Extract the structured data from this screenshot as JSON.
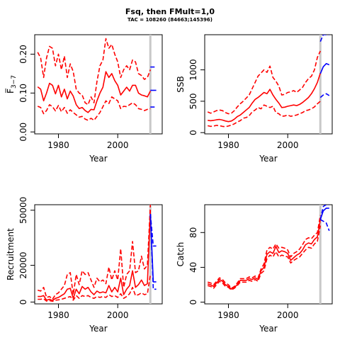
{
  "figure": {
    "title": "Fsq, then FMult=1,0",
    "subtitle": "TAC = 108260 (84663;145396)"
  },
  "colors": {
    "history": "#ff0000",
    "projection": "#0000ff",
    "divider": "#c8c8c8",
    "axis": "#000000"
  },
  "chart_data": [
    {
      "type": "line",
      "id": "fbar",
      "xlabel": "Year",
      "ylabel": "F̅",
      "ylabel_sub": "3−7",
      "xlim": [
        1972,
        2015
      ],
      "ylim": [
        -0.005,
        0.25
      ],
      "xticks": [
        1980,
        2000
      ],
      "yticks": [
        0.0,
        0.1,
        0.2
      ],
      "ytick_labels": [
        "0.00",
        "0.10",
        "0.20"
      ],
      "divider_x": 2011,
      "history": {
        "x": [
          1973,
          1974,
          1975,
          1976,
          1977,
          1978,
          1979,
          1980,
          1981,
          1982,
          1983,
          1984,
          1985,
          1986,
          1987,
          1988,
          1989,
          1990,
          1991,
          1992,
          1993,
          1994,
          1995,
          1996,
          1997,
          1998,
          1999,
          2000,
          2001,
          2002,
          2003,
          2004,
          2005,
          2006,
          2007,
          2008,
          2009,
          2010,
          2011
        ],
        "lower": [
          0.066,
          0.063,
          0.047,
          0.055,
          0.07,
          0.065,
          0.054,
          0.068,
          0.052,
          0.063,
          0.048,
          0.057,
          0.05,
          0.044,
          0.038,
          0.04,
          0.033,
          0.03,
          0.035,
          0.03,
          0.04,
          0.05,
          0.065,
          0.08,
          0.073,
          0.09,
          0.085,
          0.08,
          0.06,
          0.066,
          0.065,
          0.07,
          0.075,
          0.07,
          0.06,
          0.058,
          0.055,
          0.058,
          0.06
        ],
        "mid": [
          0.116,
          0.11,
          0.08,
          0.1,
          0.125,
          0.12,
          0.098,
          0.12,
          0.09,
          0.11,
          0.085,
          0.105,
          0.092,
          0.07,
          0.06,
          0.063,
          0.055,
          0.05,
          0.058,
          0.057,
          0.08,
          0.1,
          0.115,
          0.155,
          0.14,
          0.15,
          0.132,
          0.12,
          0.095,
          0.105,
          0.115,
          0.105,
          0.12,
          0.12,
          0.1,
          0.095,
          0.093,
          0.09,
          0.105
        ],
        "upper": [
          0.205,
          0.19,
          0.14,
          0.19,
          0.22,
          0.215,
          0.17,
          0.2,
          0.16,
          0.195,
          0.14,
          0.175,
          0.155,
          0.11,
          0.1,
          0.095,
          0.075,
          0.07,
          0.09,
          0.075,
          0.13,
          0.17,
          0.185,
          0.24,
          0.215,
          0.225,
          0.2,
          0.18,
          0.14,
          0.16,
          0.17,
          0.16,
          0.185,
          0.18,
          0.15,
          0.145,
          0.135,
          0.14,
          0.16
        ]
      },
      "projection": {
        "x": [
          2011,
          2012,
          2013
        ],
        "lower": [
          0.064,
          0.064,
          0.064
        ],
        "mid": [
          0.107,
          0.107,
          0.107
        ],
        "upper": [
          0.167,
          0.167,
          0.167
        ]
      }
    },
    {
      "type": "line",
      "id": "ssb",
      "xlabel": "Year",
      "ylabel": "SSB",
      "xlim": [
        1972,
        2015
      ],
      "ylim": [
        -20,
        1560
      ],
      "xticks": [
        1980,
        2000
      ],
      "yticks": [
        0,
        500,
        1000
      ],
      "ytick_labels": [
        "0",
        "500",
        "1000"
      ],
      "divider_x": 2011,
      "history": {
        "x": [
          1973,
          1974,
          1975,
          1976,
          1977,
          1978,
          1979,
          1980,
          1981,
          1982,
          1983,
          1984,
          1985,
          1986,
          1987,
          1988,
          1989,
          1990,
          1991,
          1992,
          1993,
          1994,
          1995,
          1996,
          1997,
          1998,
          1999,
          2000,
          2001,
          2002,
          2003,
          2004,
          2005,
          2006,
          2007,
          2008,
          2009,
          2010,
          2011
        ],
        "lower": [
          110,
          100,
          105,
          115,
          110,
          100,
          95,
          105,
          120,
          140,
          170,
          190,
          230,
          240,
          270,
          330,
          360,
          400,
          380,
          440,
          420,
          400,
          420,
          320,
          300,
          260,
          265,
          280,
          260,
          270,
          280,
          300,
          320,
          350,
          360,
          380,
          410,
          460,
          500
        ],
        "mid": [
          195,
          190,
          195,
          205,
          210,
          200,
          185,
          175,
          185,
          215,
          255,
          280,
          320,
          360,
          400,
          470,
          530,
          560,
          600,
          640,
          620,
          690,
          600,
          530,
          470,
          400,
          405,
          420,
          430,
          440,
          430,
          450,
          480,
          520,
          560,
          620,
          700,
          800,
          950
        ],
        "upper": [
          330,
          310,
          330,
          350,
          360,
          350,
          320,
          300,
          310,
          350,
          410,
          460,
          500,
          550,
          600,
          700,
          800,
          900,
          950,
          1000,
          960,
          1060,
          880,
          820,
          740,
          600,
          610,
          640,
          650,
          670,
          640,
          680,
          720,
          800,
          860,
          900,
          1000,
          1200,
          1300
        ]
      },
      "projection": {
        "x": [
          2011,
          2012,
          2013,
          2014
        ],
        "lower": [
          560,
          600,
          620,
          590
        ],
        "mid": [
          940,
          1050,
          1100,
          1080
        ],
        "upper": [
          1450,
          1560,
          1560,
          1560
        ]
      }
    },
    {
      "type": "line",
      "id": "recruitment",
      "xlabel": "Year",
      "ylabel": "Recruitment",
      "xlim": [
        1972,
        2015
      ],
      "ylim": [
        -1000,
        53000
      ],
      "xticks": [
        1980,
        2000
      ],
      "yticks": [
        0,
        20000,
        50000
      ],
      "ytick_labels": [
        "0",
        "20000",
        "50000"
      ],
      "divider_x": 2011,
      "history": {
        "x": [
          1973,
          1974,
          1975,
          1976,
          1977,
          1978,
          1979,
          1980,
          1981,
          1982,
          1983,
          1984,
          1985,
          1986,
          1987,
          1988,
          1989,
          1990,
          1991,
          1992,
          1993,
          1994,
          1995,
          1996,
          1997,
          1998,
          1999,
          2000,
          2001,
          2002,
          2003,
          2004,
          2005,
          2006,
          2007,
          2008,
          2009,
          2010,
          2011
        ],
        "lower": [
          1500,
          1500,
          1800,
          500,
          800,
          400,
          1000,
          1200,
          1500,
          2000,
          2500,
          3000,
          1000,
          3500,
          2000,
          3500,
          3000,
          3500,
          2500,
          2000,
          3000,
          2500,
          3000,
          2500,
          4000,
          3000,
          3500,
          2500,
          4500,
          2000,
          3000,
          4500,
          8000,
          3500,
          4000,
          5000,
          4000,
          4500,
          15000
        ],
        "mid": [
          3000,
          3000,
          3500,
          1000,
          1500,
          800,
          2000,
          2500,
          3500,
          4500,
          7000,
          7500,
          2000,
          7000,
          4500,
          8500,
          7000,
          8000,
          5500,
          4000,
          6000,
          5000,
          5500,
          5000,
          9000,
          5500,
          8000,
          5500,
          13000,
          4000,
          7000,
          9000,
          17000,
          8000,
          9500,
          12000,
          9000,
          10000,
          50000
        ],
        "upper": [
          6500,
          6000,
          8000,
          2500,
          3000,
          1500,
          4000,
          5000,
          7000,
          9000,
          15000,
          16000,
          4000,
          15000,
          9500,
          17000,
          15000,
          16000,
          12000,
          8000,
          13000,
          11000,
          12000,
          10000,
          19000,
          12000,
          17000,
          12000,
          29000,
          8000,
          15000,
          17000,
          33000,
          16000,
          17000,
          25000,
          18000,
          20000,
          53000
        ]
      },
      "projection": {
        "x": [
          2011,
          2012,
          2013
        ],
        "lower": [
          48000,
          7000,
          7000
        ],
        "mid": [
          48000,
          11000,
          11000
        ],
        "upper": [
          48000,
          30500,
          30500
        ]
      }
    },
    {
      "type": "line",
      "id": "catch",
      "xlabel": "Year",
      "ylabel": "Catch",
      "xlim": [
        1972,
        2015
      ],
      "ylim": [
        -2,
        112
      ],
      "xticks": [
        1980,
        2000
      ],
      "yticks": [
        0,
        40,
        80
      ],
      "ytick_labels": [
        "0",
        "40",
        "80"
      ],
      "divider_x": 2011,
      "history": {
        "x": [
          1973,
          1974,
          1975,
          1976,
          1977,
          1978,
          1979,
          1980,
          1981,
          1982,
          1983,
          1984,
          1985,
          1986,
          1987,
          1988,
          1989,
          1990,
          1991,
          1992,
          1993,
          1994,
          1995,
          1996,
          1997,
          1998,
          1999,
          2000,
          2001,
          2002,
          2003,
          2004,
          2005,
          2006,
          2007,
          2008,
          2009,
          2010,
          2011
        ],
        "lower": [
          19,
          18,
          16,
          20,
          24,
          22,
          18,
          17,
          14,
          16,
          19,
          23,
          23,
          23,
          25,
          24,
          26,
          24,
          33,
          36,
          50,
          54,
          52,
          58,
          52,
          54,
          53,
          52,
          45,
          48,
          50,
          52,
          56,
          60,
          63,
          62,
          67,
          70,
          88
        ],
        "mid": [
          21,
          20,
          18,
          22,
          26,
          24,
          20,
          18,
          15,
          17,
          20,
          25,
          25,
          25,
          27,
          26,
          28,
          26,
          36,
          40,
          55,
          58,
          56,
          64,
          57,
          59,
          58,
          56,
          48,
          51,
          54,
          56,
          60,
          66,
          68,
          67,
          72,
          75,
          95
        ],
        "upper": [
          23,
          22,
          20,
          24,
          28,
          26,
          22,
          20,
          16,
          18,
          22,
          27,
          27,
          27,
          29,
          28,
          30,
          28,
          38,
          44,
          60,
          63,
          61,
          67,
          62,
          63,
          62,
          60,
          52,
          56,
          58,
          61,
          66,
          72,
          74,
          73,
          77,
          80,
          100
        ]
      },
      "projection": {
        "x": [
          2011,
          2012,
          2013,
          2014
        ],
        "lower": [
          95,
          93,
          91,
          82
        ],
        "mid": [
          95,
          105,
          108,
          108
        ],
        "upper": [
          95,
          110,
          112,
          112
        ]
      }
    }
  ]
}
